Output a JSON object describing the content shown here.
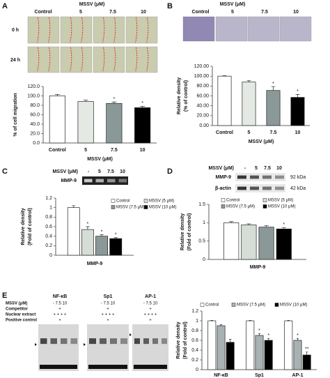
{
  "chart_data": [
    {
      "type": "bar",
      "panel_label": "A",
      "treatment_label": "MSSV (μM)",
      "lane_labels": [
        "Control",
        "5",
        "7.5",
        "10"
      ],
      "row_labels": [
        "0 h",
        "24 h"
      ],
      "categories": [
        "Control",
        "5",
        "7.5",
        "10"
      ],
      "values": [
        100,
        88,
        84,
        75
      ],
      "errors": [
        3,
        3,
        3,
        3
      ],
      "significance": [
        null,
        null,
        "*",
        "*"
      ],
      "colors": [
        "#ffffff",
        "#e4e9e4",
        "#8a9898",
        "#000000"
      ],
      "ylabel": [
        "% of cell migration"
      ],
      "xlabel": "MSSV (μM)",
      "ylim": [
        0,
        120
      ],
      "yticks": [
        {
          "value": 0,
          "label": "0.0"
        },
        {
          "value": 20,
          "label": "20.0"
        },
        {
          "value": 40,
          "label": "40.0"
        },
        {
          "value": 60,
          "label": "60.0"
        },
        {
          "value": 80,
          "label": "80.0"
        },
        {
          "value": 100,
          "label": "100.0"
        },
        {
          "value": 120,
          "label": "120.0"
        }
      ]
    },
    {
      "type": "bar",
      "panel_label": "B",
      "treatment_label": "MSSV (μM)",
      "lane_labels": [
        "Control",
        "5",
        "7.5",
        "10"
      ],
      "categories": [
        "Control",
        "5",
        "7.5",
        "10"
      ],
      "values": [
        100,
        88,
        71,
        57
      ],
      "errors": [
        1,
        3,
        8,
        6
      ],
      "significance": [
        null,
        null,
        "*",
        "*"
      ],
      "colors": [
        "#ffffff",
        "#e4e9e4",
        "#8a9898",
        "#000000"
      ],
      "ylabel": [
        "Relative density",
        "(% of control)"
      ],
      "xlabel": "MSSV (μM)",
      "ylim": [
        0,
        120
      ],
      "yticks": [
        {
          "value": 0,
          "label": "0.00"
        },
        {
          "value": 20,
          "label": "20.00"
        },
        {
          "value": 40,
          "label": "40.00"
        },
        {
          "value": 60,
          "label": "60.00"
        },
        {
          "value": 80,
          "label": "80.00"
        },
        {
          "value": 100,
          "label": "100.00"
        },
        {
          "value": 120,
          "label": "120.00"
        }
      ]
    },
    {
      "type": "bar",
      "panel_label": "C",
      "treatment_label": "MSSV (μM)",
      "lane_labels": [
        "-",
        "5",
        "7.5",
        "10"
      ],
      "blot_labels": [
        "MMP-9"
      ],
      "categories": [
        "MMP-9"
      ],
      "series": [
        {
          "name": "Control",
          "color": "#ffffff",
          "values": [
            1.0
          ],
          "errors": [
            0.04
          ],
          "significance": [
            null
          ]
        },
        {
          "name": "MSSV (5 μM)",
          "color": "#d6ddd6",
          "values": [
            0.54
          ],
          "errors": [
            0.06
          ],
          "significance": [
            "*"
          ]
        },
        {
          "name": "MSSV (7.5 μM)",
          "color": "#8a9898",
          "values": [
            0.4
          ],
          "errors": [
            0.03
          ],
          "significance": [
            "*"
          ]
        },
        {
          "name": "MSSV (10 μM)",
          "color": "#000000",
          "values": [
            0.35
          ],
          "errors": [
            0.02
          ],
          "significance": [
            "*"
          ]
        }
      ],
      "ylabel": [
        "Relative density",
        "(Fold of control)"
      ],
      "ylim": [
        0,
        1.2
      ],
      "yticks": [
        0,
        0.2,
        0.4,
        0.6,
        0.8,
        1,
        1.2
      ]
    },
    {
      "type": "bar",
      "panel_label": "D",
      "treatment_label": "MSSV (μM)",
      "lane_labels": [
        "-",
        "5",
        "7.5",
        "10"
      ],
      "blot_labels": [
        "MMP-9",
        "β-actin"
      ],
      "size_labels": [
        "92 kDa",
        "42 kDa"
      ],
      "categories": [
        "MMP-9"
      ],
      "series": [
        {
          "name": "Control",
          "color": "#ffffff",
          "values": [
            1.0
          ],
          "errors": [
            0.03
          ],
          "significance": [
            null
          ]
        },
        {
          "name": "MSSV (5 μM)",
          "color": "#d6ddd6",
          "values": [
            0.94
          ],
          "errors": [
            0.03
          ],
          "significance": [
            null
          ]
        },
        {
          "name": "MSSV (7.5 μM)",
          "color": "#8a9898",
          "values": [
            0.88
          ],
          "errors": [
            0.04
          ],
          "significance": [
            null
          ]
        },
        {
          "name": "MSSV (10 μM)",
          "color": "#000000",
          "values": [
            0.83
          ],
          "errors": [
            0.04
          ],
          "significance": [
            "*"
          ]
        }
      ],
      "ylabel": [
        "Relative density",
        "(Fold of control)"
      ],
      "ylim": [
        0,
        1.5
      ],
      "yticks": [
        0,
        0.5,
        1,
        1.5
      ]
    },
    {
      "type": "bar",
      "panel_label": "E",
      "row_labels": [
        "MSSV (μM)",
        "Competitor",
        "Nuclear extract",
        "Positive control"
      ],
      "blots": [
        {
          "name": "NF-κB",
          "rows": [
            "- 7.5 10",
            "+",
            "+ + + +",
            "+"
          ]
        },
        {
          "name": "Sp1",
          "rows": [
            "- 7.5 10",
            "+",
            "+ + + +",
            "+"
          ]
        },
        {
          "name": "AP-1",
          "rows": [
            "- 7.5 10",
            "+",
            "+ + + +",
            "+"
          ]
        }
      ],
      "categories": [
        "NF-κB",
        "Sp1",
        "AP-1"
      ],
      "series": [
        {
          "name": "Control",
          "color": "#ffffff",
          "values": [
            1,
            1,
            1
          ],
          "errors": [
            0.01,
            0.01,
            0.01
          ],
          "significance": [
            null,
            null,
            null
          ]
        },
        {
          "name": "MSSV (7.5 μM)",
          "color": "#a8b2b2",
          "values": [
            0.9,
            0.7,
            0.6
          ],
          "errors": [
            0.02,
            0.04,
            0.04
          ],
          "significance": [
            null,
            "*",
            "*"
          ]
        },
        {
          "name": "MSSV (10 μM)",
          "color": "#000000",
          "values": [
            0.56,
            0.6,
            0.3
          ],
          "errors": [
            0.06,
            0.04,
            0.06
          ],
          "significance": [
            null,
            "*",
            "**"
          ]
        }
      ],
      "ylabel": [
        "Relative density",
        "(Fold of control)"
      ],
      "ylim": [
        0,
        1.2
      ],
      "yticks": [
        0,
        0.2,
        0.4,
        0.6,
        0.8,
        1,
        1.2
      ]
    }
  ]
}
